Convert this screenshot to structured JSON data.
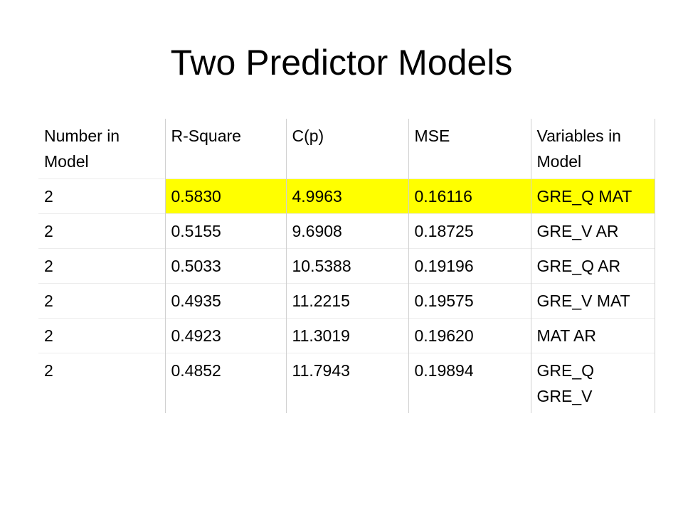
{
  "title": "Two Predictor Models",
  "table": {
    "header": [
      "Number in Model",
      "R-Square",
      "C(p)",
      "MSE",
      "Variables in Model"
    ],
    "rows": [
      [
        "2",
        "0.5830",
        "4.9963",
        "0.16116",
        "GRE_Q MAT"
      ],
      [
        "2",
        "0.5155",
        "9.6908",
        "0.18725",
        "GRE_V AR"
      ],
      [
        "2",
        "0.5033",
        "10.5388",
        "0.19196",
        "GRE_Q AR"
      ],
      [
        "2",
        "0.4935",
        "11.2215",
        "0.19575",
        "GRE_V MAT"
      ],
      [
        "2",
        "0.4923",
        "11.3019",
        "0.19620",
        "MAT AR"
      ],
      [
        "2",
        "0.4852",
        "11.7943",
        "0.19894",
        "GRE_Q GRE_V"
      ]
    ]
  }
}
